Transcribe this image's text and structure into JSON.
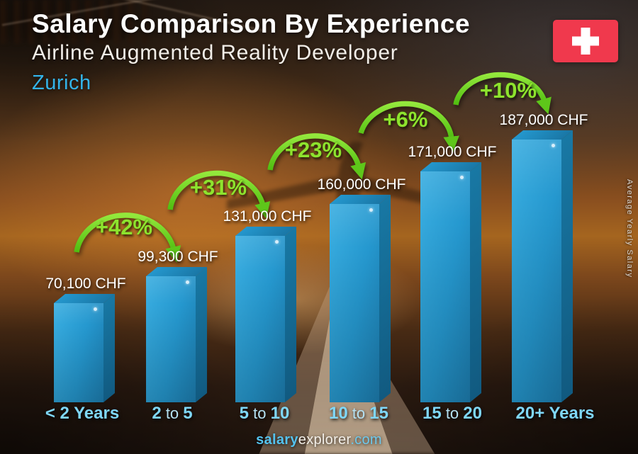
{
  "header": {
    "title": "Salary Comparison By Experience",
    "subtitle": "Airline Augmented Reality Developer",
    "city": "Zurich"
  },
  "flag": {
    "country": "Switzerland"
  },
  "ylabel": "Average Yearly Salary",
  "footer": {
    "salary": "salary",
    "explorer": "explorer",
    "dotcom": ".com"
  },
  "chart_data": {
    "type": "bar",
    "title": "Salary Comparison By Experience",
    "subtitle": "Airline Augmented Reality Developer",
    "location": "Zurich",
    "currency": "CHF",
    "ylabel": "Average Yearly Salary",
    "categories": [
      "< 2 Years",
      "2 to 5",
      "5 to 10",
      "10 to 15",
      "15 to 20",
      "20+ Years"
    ],
    "category_parts": [
      [
        {
          "text": "< 2 Years",
          "bold": true
        }
      ],
      [
        {
          "text": "2",
          "bold": true
        },
        {
          "text": " to ",
          "bold": false
        },
        {
          "text": "5",
          "bold": true
        }
      ],
      [
        {
          "text": "5",
          "bold": true
        },
        {
          "text": " to ",
          "bold": false
        },
        {
          "text": "10",
          "bold": true
        }
      ],
      [
        {
          "text": "10",
          "bold": true
        },
        {
          "text": " to ",
          "bold": false
        },
        {
          "text": "15",
          "bold": true
        }
      ],
      [
        {
          "text": "15",
          "bold": true
        },
        {
          "text": " to ",
          "bold": false
        },
        {
          "text": "20",
          "bold": true
        }
      ],
      [
        {
          "text": "20+ Years",
          "bold": true
        }
      ]
    ],
    "values": [
      70100,
      99300,
      131000,
      160000,
      171000,
      187000
    ],
    "value_labels": [
      "70,100 CHF",
      "99,300 CHF",
      "131,000 CHF",
      "160,000 CHF",
      "171,000 CHF",
      "187,000 CHF"
    ],
    "pct_changes": [
      "+42%",
      "+31%",
      "+23%",
      "+6%",
      "+10%"
    ],
    "legend": "none",
    "colors": {
      "bar_front_light": "#39ade0",
      "bar_front": "#2598cf",
      "bar_front_dark": "#1d7fb2",
      "bar_side_light": "#1878a4",
      "bar_side_dark": "#115a80",
      "bar_top_light": "#2497cd",
      "bar_top_dark": "#1a77a6",
      "arrow_green_light": "#93e83c",
      "arrow_green_dark": "#4fbd10",
      "arrow_head": "#5ec61a",
      "pct_text": "#8ee32e",
      "category_text": "#7fd7f9",
      "value_text": "#ffffff",
      "city_text": "#33b3e8",
      "flag_red": "#f0394d"
    }
  }
}
